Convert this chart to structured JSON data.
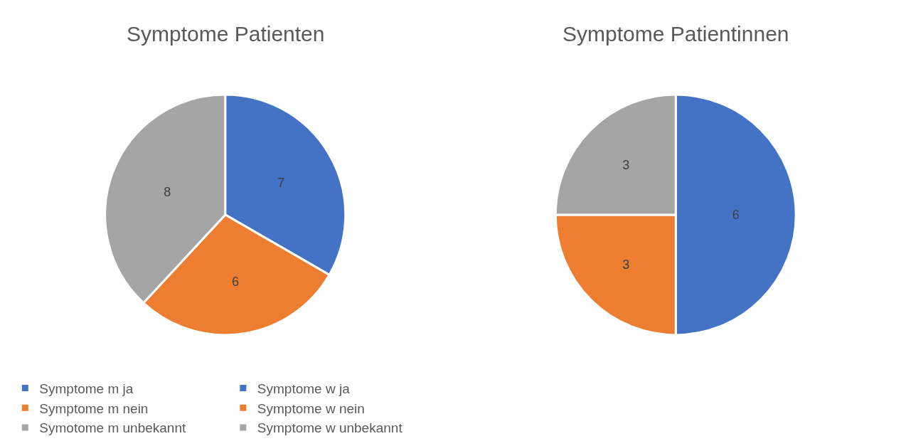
{
  "chart_data": [
    {
      "type": "pie",
      "title": "Symptome Patienten",
      "categories": [
        "Symptome m ja",
        "Symptome m nein",
        "Symotome m unbekannt"
      ],
      "values": [
        7,
        6,
        8
      ],
      "colors": [
        "#4472c4",
        "#ed7d31",
        "#a5a5a5"
      ],
      "data_labels": true,
      "legend": "bottom"
    },
    {
      "type": "pie",
      "title": "Symptome Patientinnen",
      "categories": [
        "Symptome w ja",
        "Symptome w nein",
        "Symptome w unbekannt"
      ],
      "values": [
        6,
        3,
        3
      ],
      "colors": [
        "#4472c4",
        "#ed7d31",
        "#a5a5a5"
      ],
      "data_labels": true,
      "legend": "bottom"
    }
  ]
}
